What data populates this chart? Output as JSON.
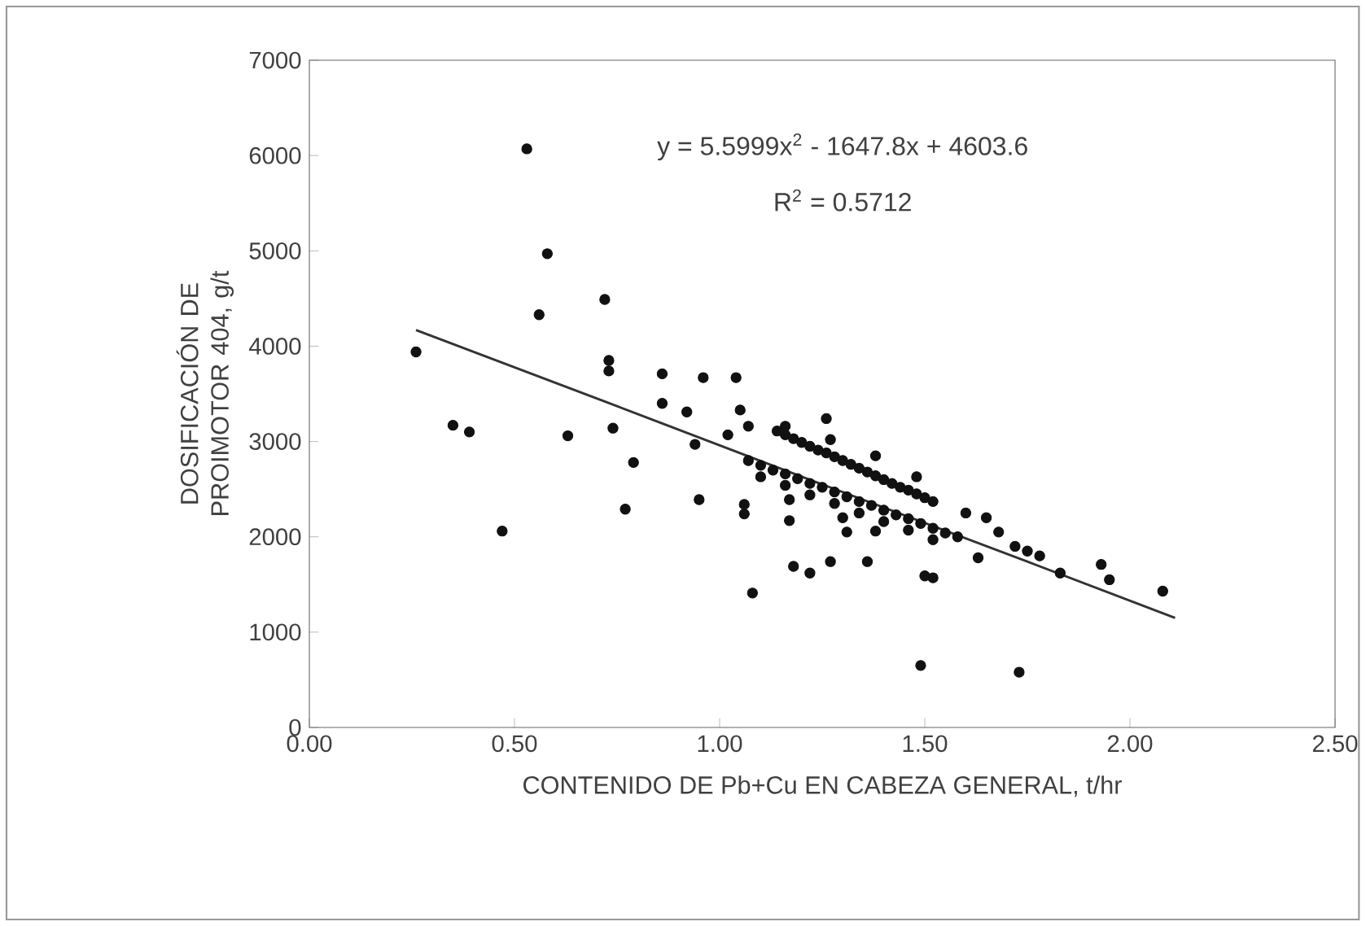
{
  "chart_data": {
    "type": "scatter",
    "xlabel": "CONTENIDO DE Pb+Cu EN CABEZA GENERAL, t/hr",
    "ylabel": "DOSIFICACIÓN DE PROIMOTOR 404, g/t",
    "annotations": [
      "y = 5.5999x$^{2}$ - 1647.8x + 4603.6",
      "R$^{2}$ = 0.5712"
    ],
    "xlim": [
      0,
      2.5
    ],
    "ylim": [
      0,
      7000
    ],
    "xticks": [
      {
        "value": 0,
        "label": "0.00"
      },
      {
        "value": 0.5,
        "label": "0.50"
      },
      {
        "value": 1,
        "label": "1.00"
      },
      {
        "value": 1.5,
        "label": "1.50"
      },
      {
        "value": 2,
        "label": "2.00"
      },
      {
        "value": 2.5,
        "label": "2.50"
      }
    ],
    "yticks": [
      0,
      1000,
      2000,
      3000,
      4000,
      5000,
      6000,
      7000
    ],
    "grid": false,
    "series": [
      {
        "color": "#111111",
        "marker": "circle",
        "x": [
          0.26,
          0.35,
          0.39,
          0.47,
          0.53,
          0.58,
          0.56,
          0.72,
          0.73,
          0.73,
          0.63,
          0.74,
          0.79,
          0.77,
          0.86,
          0.86,
          0.92,
          0.94,
          0.95,
          0.96,
          1.04,
          1.02,
          1.05,
          1.07,
          1.06,
          1.06,
          1.08,
          1.16,
          1.17,
          1.17,
          1.18,
          1.22,
          1.26,
          1.27,
          1.3,
          1.31,
          1.27,
          1.36,
          1.38,
          1.38,
          1.48,
          1.5,
          1.52,
          1.49,
          1.73,
          1.93,
          1.95,
          2.08,
          1.83,
          1.63,
          1.14,
          1.16,
          1.18,
          1.2,
          1.22,
          1.24,
          1.26,
          1.28,
          1.3,
          1.32,
          1.34,
          1.36,
          1.38,
          1.4,
          1.42,
          1.44,
          1.46,
          1.48,
          1.5,
          1.52,
          1.07,
          1.1,
          1.13,
          1.16,
          1.19,
          1.22,
          1.25,
          1.28,
          1.31,
          1.34,
          1.37,
          1.4,
          1.43,
          1.46,
          1.49,
          1.52,
          1.55,
          1.58,
          1.1,
          1.16,
          1.22,
          1.28,
          1.34,
          1.4,
          1.46,
          1.52,
          1.6,
          1.65,
          1.68,
          1.72,
          1.75,
          1.78
        ],
        "values": [
          3940,
          3170,
          3100,
          2060,
          6070,
          4970,
          4330,
          4490,
          3850,
          3740,
          3060,
          3140,
          2780,
          2290,
          3710,
          3400,
          3310,
          2970,
          2390,
          3670,
          3670,
          3070,
          3330,
          3160,
          2340,
          2240,
          1410,
          3160,
          2390,
          2170,
          1690,
          1620,
          3240,
          3020,
          2200,
          2050,
          1740,
          1740,
          2060,
          2850,
          2630,
          1590,
          1570,
          650,
          580,
          1710,
          1550,
          1430,
          1620,
          1780,
          3110,
          3070,
          3030,
          2990,
          2950,
          2910,
          2880,
          2840,
          2800,
          2760,
          2720,
          2680,
          2640,
          2600,
          2560,
          2520,
          2490,
          2450,
          2410,
          2370,
          2800,
          2750,
          2700,
          2660,
          2610,
          2560,
          2520,
          2470,
          2420,
          2370,
          2330,
          2280,
          2230,
          2190,
          2140,
          2090,
          2040,
          2000,
          2630,
          2540,
          2440,
          2350,
          2250,
          2160,
          2070,
          1970,
          2250,
          2200,
          2050,
          1900,
          1850,
          1800
        ]
      },
      {
        "type": "line",
        "color": "#333333",
        "marker": "none",
        "line_style": "solid",
        "x": [
          0.26,
          0.75,
          1.25,
          1.75,
          2.11
        ],
        "values": [
          4170,
          3370,
          2550,
          1740,
          1150
        ]
      }
    ]
  }
}
